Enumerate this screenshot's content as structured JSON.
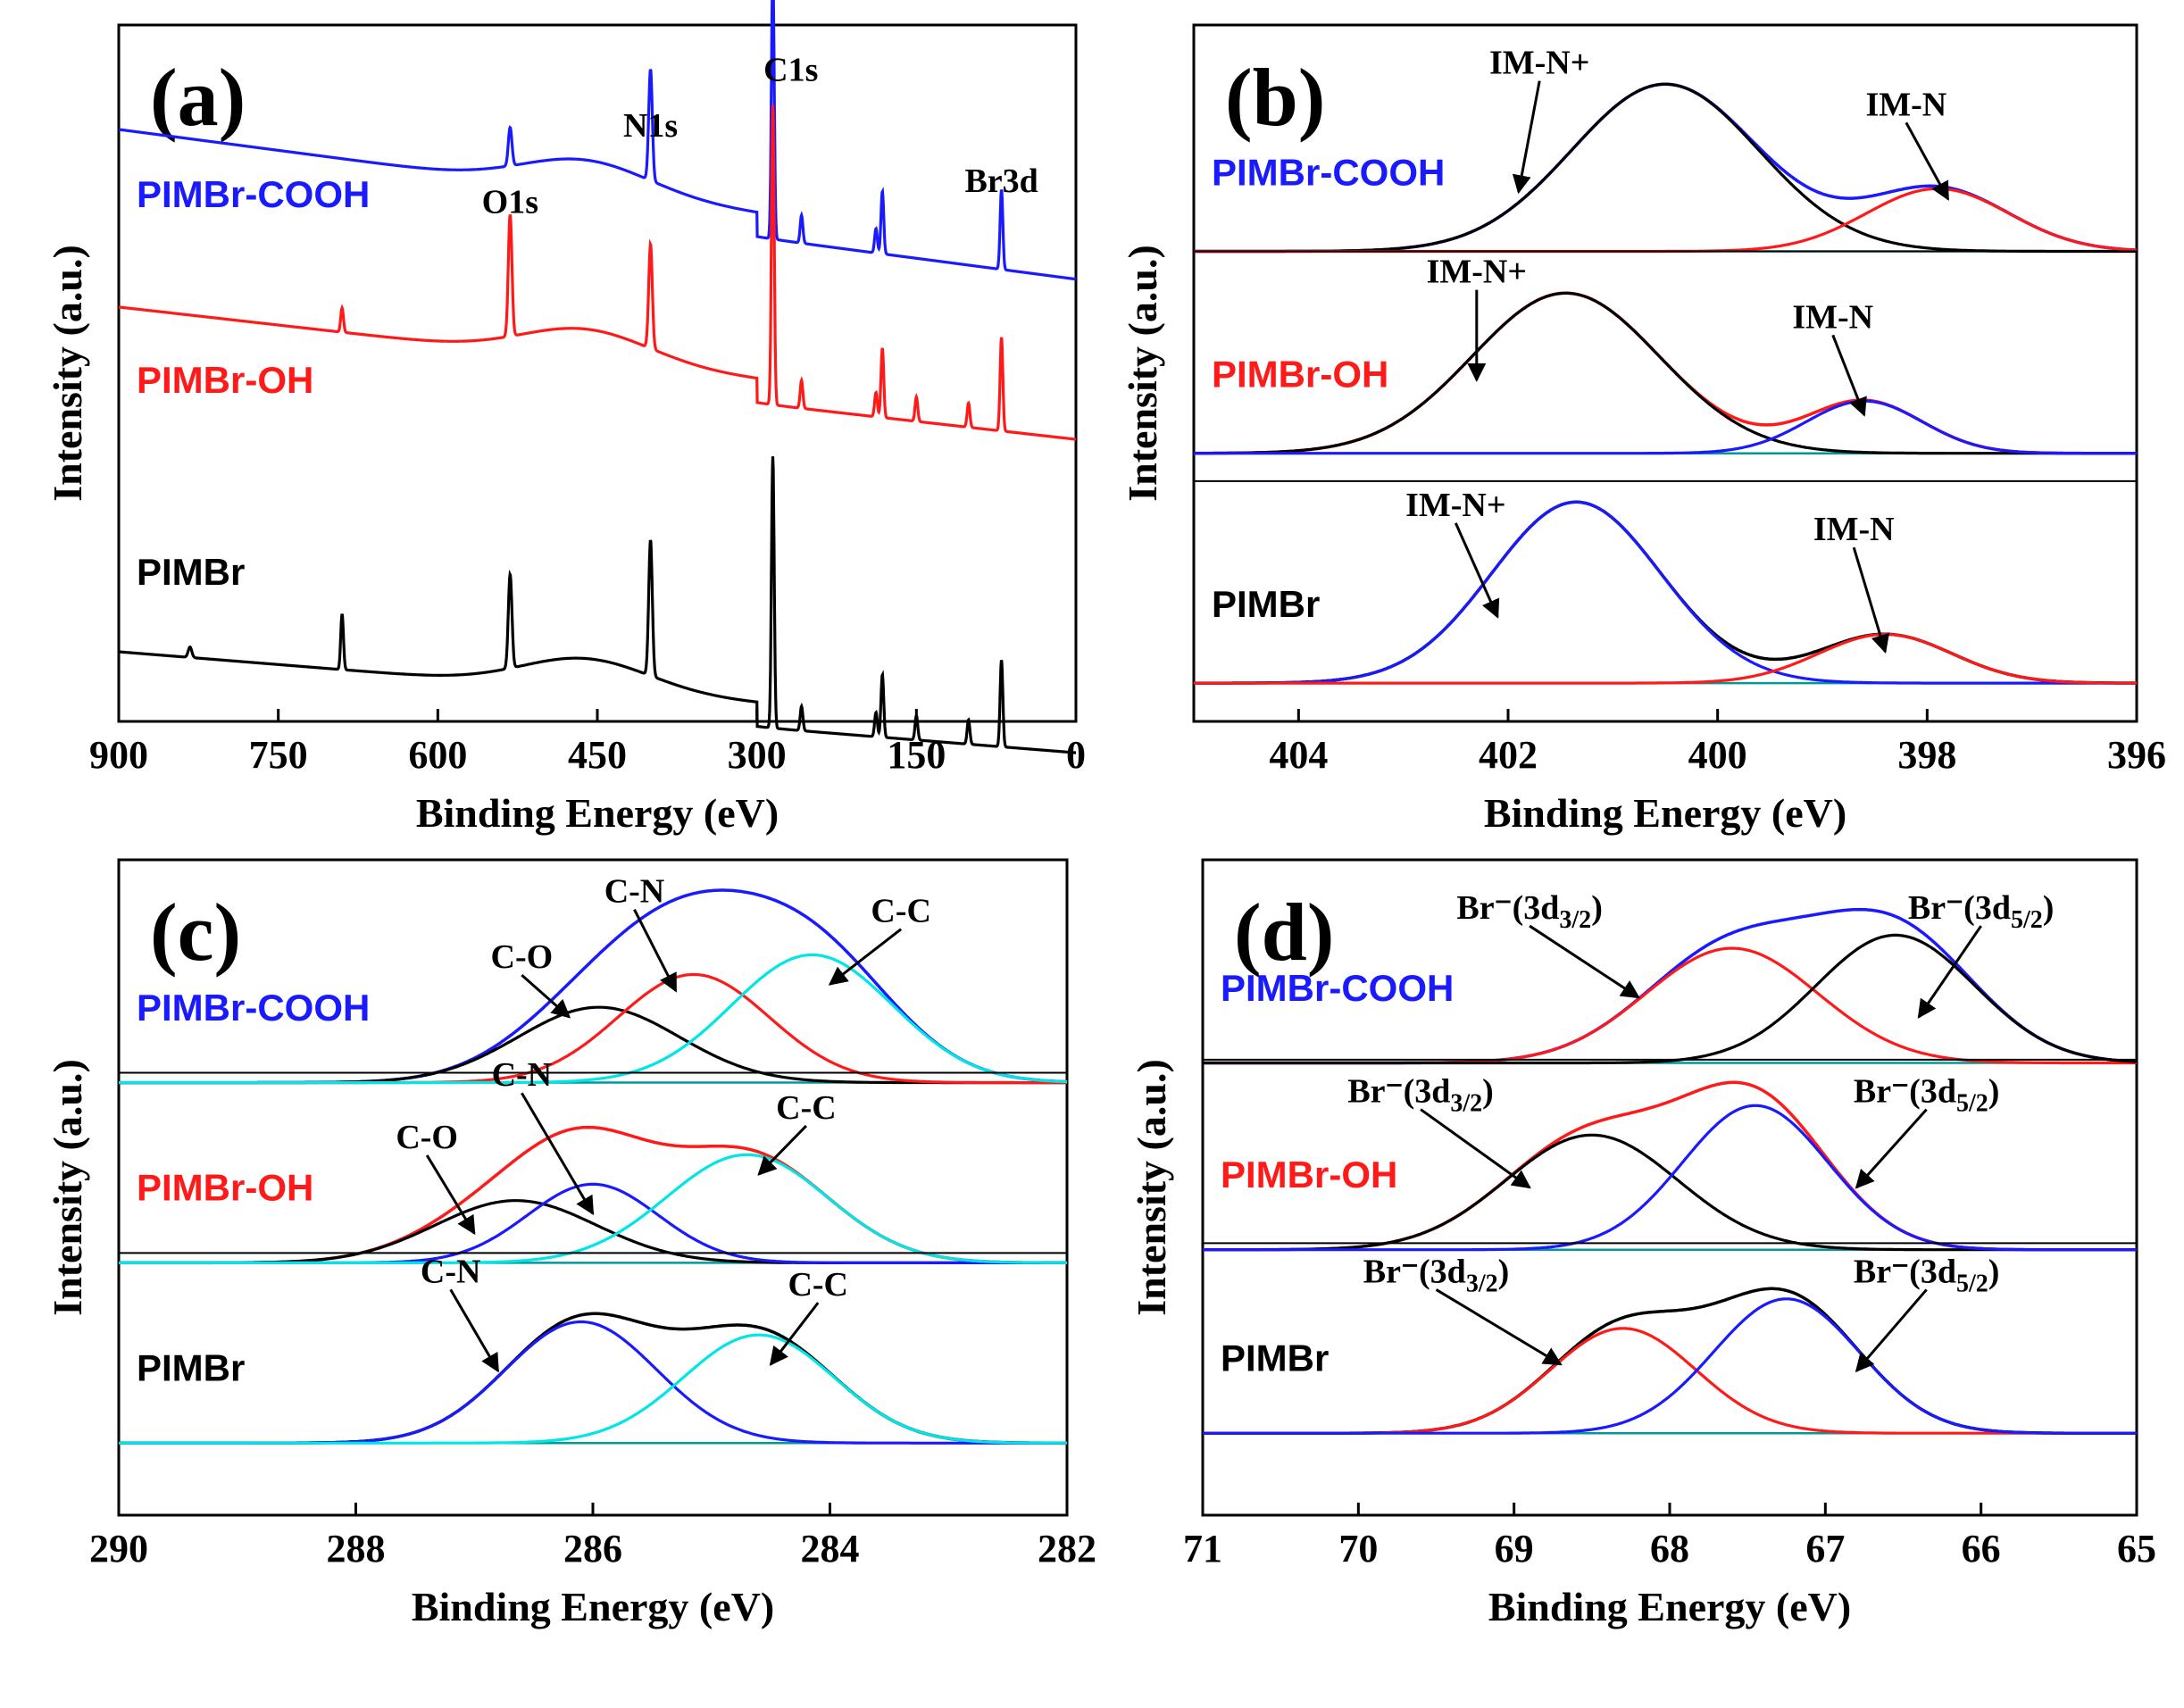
{
  "colors": {
    "blue": "#1a1aff",
    "red": "#ff1a1a",
    "black": "#000000",
    "cyan": "#00e5e5",
    "teal": "#009999"
  },
  "chart_data": [
    {
      "id": "a",
      "type": "line",
      "panel_label": "(a)",
      "xlabel": "Binding Energy (eV)",
      "ylabel": "Intensity (a.u.)",
      "xlim": [
        900,
        0
      ],
      "ylim": [
        0,
        10
      ],
      "xticks": [
        "900",
        "750",
        "600",
        "450",
        "300",
        "150",
        "0"
      ],
      "series": [
        {
          "name": "PIMBr-COOH",
          "color": "blue",
          "baseline_start": 8.5,
          "baseline_end": 6.7,
          "peaks": [
            [
              532,
              0.55,
              4
            ],
            [
              400,
              1.6,
              4
            ],
            [
              285,
              3.9,
              3
            ],
            [
              258,
              0.4,
              3
            ],
            [
              188,
              0.35,
              3
            ],
            [
              182,
              0.9,
              3
            ],
            [
              70,
              1.15,
              3
            ]
          ]
        },
        {
          "name": "PIMBr-OH",
          "color": "red",
          "baseline_start": 5.95,
          "baseline_end": 4.4,
          "peaks": [
            [
              690,
              0.35,
              3
            ],
            [
              532,
              1.75,
              4
            ],
            [
              400,
              1.5,
              4
            ],
            [
              285,
              4.3,
              3
            ],
            [
              258,
              0.4,
              3
            ],
            [
              188,
              0.35,
              3
            ],
            [
              182,
              1.0,
              3
            ],
            [
              150,
              0.35,
              3
            ],
            [
              101,
              0.35,
              3
            ],
            [
              70,
              1.35,
              3
            ]
          ]
        },
        {
          "name": "PIMBr",
          "color": "black",
          "baseline_start": 1.0,
          "baseline_end": -0.1,
          "peaks": [
            [
              833,
              0.15,
              4
            ],
            [
              690,
              0.8,
              3
            ],
            [
              532,
              1.35,
              4
            ],
            [
              400,
              1.95,
              4
            ],
            [
              285,
              3.9,
              3
            ],
            [
              258,
              0.35,
              3
            ],
            [
              188,
              0.35,
              3
            ],
            [
              182,
              0.9,
              3
            ],
            [
              150,
              0.35,
              3
            ],
            [
              101,
              0.35,
              3
            ],
            [
              70,
              1.25,
              3
            ]
          ]
        }
      ],
      "annotations": [
        {
          "text": "O1s",
          "x": 532,
          "y": 7.3
        },
        {
          "text": "N1s",
          "x": 400,
          "y": 8.4
        },
        {
          "text": "C1s",
          "x": 268,
          "y": 9.2
        },
        {
          "text": "Br3d",
          "x": 70,
          "y": 7.6
        }
      ]
    },
    {
      "id": "b",
      "type": "line",
      "panel_label": "(b)",
      "xlabel": "Binding Energy (eV)",
      "ylabel": "Intensity (a.u.)",
      "xlim": [
        405,
        396
      ],
      "ylim": [
        0,
        10
      ],
      "xticks": [
        "404",
        "402",
        "400",
        "398",
        "396"
      ],
      "groups": [
        {
          "name": "PIMBr-COOH",
          "label_color": "blue",
          "baseline": 6.75,
          "components": [
            {
              "name": "IM-N+",
              "center": 400.5,
              "height": 2.4,
              "fwhm": 2.1,
              "color": "black"
            },
            {
              "name": "IM-N",
              "center": 397.9,
              "height": 0.9,
              "fwhm": 1.6,
              "color": "red"
            }
          ],
          "envelope_color": "blue",
          "annotations": [
            {
              "text": "IM-N+",
              "x": 401.7,
              "y": 9.3,
              "ax": 401.9,
              "ay": 7.6
            },
            {
              "text": "IM-N",
              "x": 398.2,
              "y": 8.7,
              "ax": 397.8,
              "ay": 7.5
            }
          ]
        },
        {
          "name": "PIMBr-OH",
          "label_color": "red",
          "baseline": 3.85,
          "components": [
            {
              "name": "IM-N+",
              "center": 401.45,
              "height": 2.3,
              "fwhm": 2.1,
              "color": "black"
            },
            {
              "name": "IM-N",
              "center": 398.6,
              "height": 0.75,
              "fwhm": 1.3,
              "color": "blue"
            }
          ],
          "envelope_color": "red",
          "annotations": [
            {
              "text": "IM-N+",
              "x": 402.3,
              "y": 6.3,
              "ax": 402.3,
              "ay": 4.9
            },
            {
              "text": "IM-N",
              "x": 398.9,
              "y": 5.65,
              "ax": 398.6,
              "ay": 4.4
            }
          ]
        },
        {
          "name": "PIMBr",
          "label_color": "black",
          "baseline": 0.55,
          "components": [
            {
              "name": "IM-N+",
              "center": 401.35,
              "height": 2.6,
              "fwhm": 1.9,
              "color": "blue"
            },
            {
              "name": "IM-N",
              "center": 398.4,
              "height": 0.7,
              "fwhm": 1.5,
              "color": "red"
            }
          ],
          "envelope_color": "black",
          "annotations": [
            {
              "text": "IM-N+",
              "x": 402.5,
              "y": 2.95,
              "ax": 402.1,
              "ay": 1.5
            },
            {
              "text": "IM-N",
              "x": 398.7,
              "y": 2.6,
              "ax": 398.4,
              "ay": 1.0
            }
          ]
        }
      ]
    },
    {
      "id": "c",
      "type": "line",
      "panel_label": "(c)",
      "xlabel": "Binding Energy (eV)",
      "ylabel": "Intensity (a.u.)",
      "xlim": [
        290,
        282
      ],
      "ylim": [
        0,
        10
      ],
      "xticks": [
        "290",
        "288",
        "286",
        "284",
        "282"
      ],
      "groups": [
        {
          "name": "PIMBr-COOH",
          "label_color": "blue",
          "baseline": 6.6,
          "components": [
            {
              "name": "C-O",
              "center": 285.95,
              "height": 1.15,
              "fwhm": 1.6,
              "color": "black"
            },
            {
              "name": "C-N",
              "center": 285.15,
              "height": 1.65,
              "fwhm": 1.5,
              "color": "red"
            },
            {
              "name": "C-C",
              "center": 284.15,
              "height": 1.95,
              "fwhm": 1.6,
              "color": "cyan"
            }
          ],
          "envelope_color": "blue",
          "annotations": [
            {
              "text": "C-O",
              "x": 286.6,
              "y": 8.35,
              "ax": 286.2,
              "ay": 7.6
            },
            {
              "text": "C-N",
              "x": 285.65,
              "y": 9.35,
              "ax": 285.3,
              "ay": 8.0
            },
            {
              "text": "C-C",
              "x": 283.4,
              "y": 9.05,
              "ax": 284.0,
              "ay": 8.1
            }
          ]
        },
        {
          "name": "PIMBr-OH",
          "label_color": "red",
          "baseline": 3.85,
          "components": [
            {
              "name": "C-O",
              "center": 286.65,
              "height": 0.95,
              "fwhm": 1.6,
              "color": "black"
            },
            {
              "name": "C-N",
              "center": 286.0,
              "height": 1.2,
              "fwhm": 1.3,
              "color": "blue"
            },
            {
              "name": "C-C",
              "center": 284.7,
              "height": 1.65,
              "fwhm": 1.6,
              "color": "cyan"
            }
          ],
          "envelope_color": "red",
          "annotations": [
            {
              "text": "C-O",
              "x": 287.4,
              "y": 5.6,
              "ax": 287.0,
              "ay": 4.3
            },
            {
              "text": "C-N",
              "x": 286.6,
              "y": 6.55,
              "ax": 286.0,
              "ay": 4.6
            },
            {
              "text": "C-C",
              "x": 284.2,
              "y": 6.05,
              "ax": 284.6,
              "ay": 5.2
            }
          ]
        },
        {
          "name": "PIMBr",
          "label_color": "black",
          "baseline": 1.1,
          "components": [
            {
              "name": "C-N",
              "center": 286.1,
              "height": 1.85,
              "fwhm": 1.5,
              "color": "blue"
            },
            {
              "name": "C-C",
              "center": 284.6,
              "height": 1.65,
              "fwhm": 1.5,
              "color": "cyan"
            }
          ],
          "envelope_color": "black",
          "annotations": [
            {
              "text": "C-N",
              "x": 287.2,
              "y": 3.55,
              "ax": 286.8,
              "ay": 2.2
            },
            {
              "text": "C-C",
              "x": 284.1,
              "y": 3.35,
              "ax": 284.5,
              "ay": 2.3
            }
          ]
        }
      ]
    },
    {
      "id": "d",
      "type": "line",
      "panel_label": "(d)",
      "xlabel": "Binding Energy (eV)",
      "ylabel": "Intensity (a.u.)",
      "xlim": [
        71,
        65
      ],
      "ylim": [
        0,
        10
      ],
      "xticks": [
        "71",
        "70",
        "69",
        "68",
        "67",
        "66",
        "65"
      ],
      "groups": [
        {
          "name": "PIMBr-COOH",
          "label_color": "blue",
          "baseline": 6.9,
          "components": [
            {
              "name": "Br−(3d3/2)",
              "center": 67.6,
              "height": 1.75,
              "fwhm": 1.3,
              "color": "red"
            },
            {
              "name": "Br−(3d5/2)",
              "center": 66.55,
              "height": 1.95,
              "fwhm": 1.2,
              "color": "black"
            }
          ],
          "envelope_color": "blue",
          "annotations": [
            {
              "text": "Br⁻(3d",
              "sub": "3/2",
              "close": ")",
              "x": 68.9,
              "y": 9.1,
              "ax": 68.2,
              "ay": 7.9
            },
            {
              "text": "Br⁻(3d",
              "sub": "5/2",
              "close": ")",
              "x": 66.0,
              "y": 9.1,
              "ax": 66.4,
              "ay": 7.6
            }
          ]
        },
        {
          "name": "PIMBr-OH",
          "label_color": "red",
          "baseline": 4.05,
          "components": [
            {
              "name": "Br−(3d3/2)",
              "center": 68.5,
              "height": 1.75,
              "fwhm": 1.3,
              "color": "black"
            },
            {
              "name": "Br−(3d5/2)",
              "center": 67.45,
              "height": 2.2,
              "fwhm": 1.1,
              "color": "blue"
            }
          ],
          "envelope_color": "red",
          "annotations": [
            {
              "text": "Br⁻(3d",
              "sub": "3/2",
              "close": ")",
              "x": 69.6,
              "y": 6.3,
              "ax": 68.9,
              "ay": 5.0
            },
            {
              "text": "Br⁻(3d",
              "sub": "5/2",
              "close": ")",
              "x": 66.35,
              "y": 6.3,
              "ax": 66.8,
              "ay": 5.0
            }
          ]
        },
        {
          "name": "PIMBr",
          "label_color": "black",
          "baseline": 1.25,
          "components": [
            {
              "name": "Br−(3d3/2)",
              "center": 68.3,
              "height": 1.6,
              "fwhm": 1.1,
              "color": "red"
            },
            {
              "name": "Br−(3d5/2)",
              "center": 67.25,
              "height": 2.05,
              "fwhm": 1.1,
              "color": "blue"
            }
          ],
          "envelope_color": "black",
          "annotations": [
            {
              "text": "Br⁻(3d",
              "sub": "3/2",
              "close": ")",
              "x": 69.5,
              "y": 3.55,
              "ax": 68.7,
              "ay": 2.3
            },
            {
              "text": "Br⁻(3d",
              "sub": "5/2",
              "close": ")",
              "x": 66.35,
              "y": 3.55,
              "ax": 66.8,
              "ay": 2.2
            }
          ]
        }
      ]
    }
  ]
}
